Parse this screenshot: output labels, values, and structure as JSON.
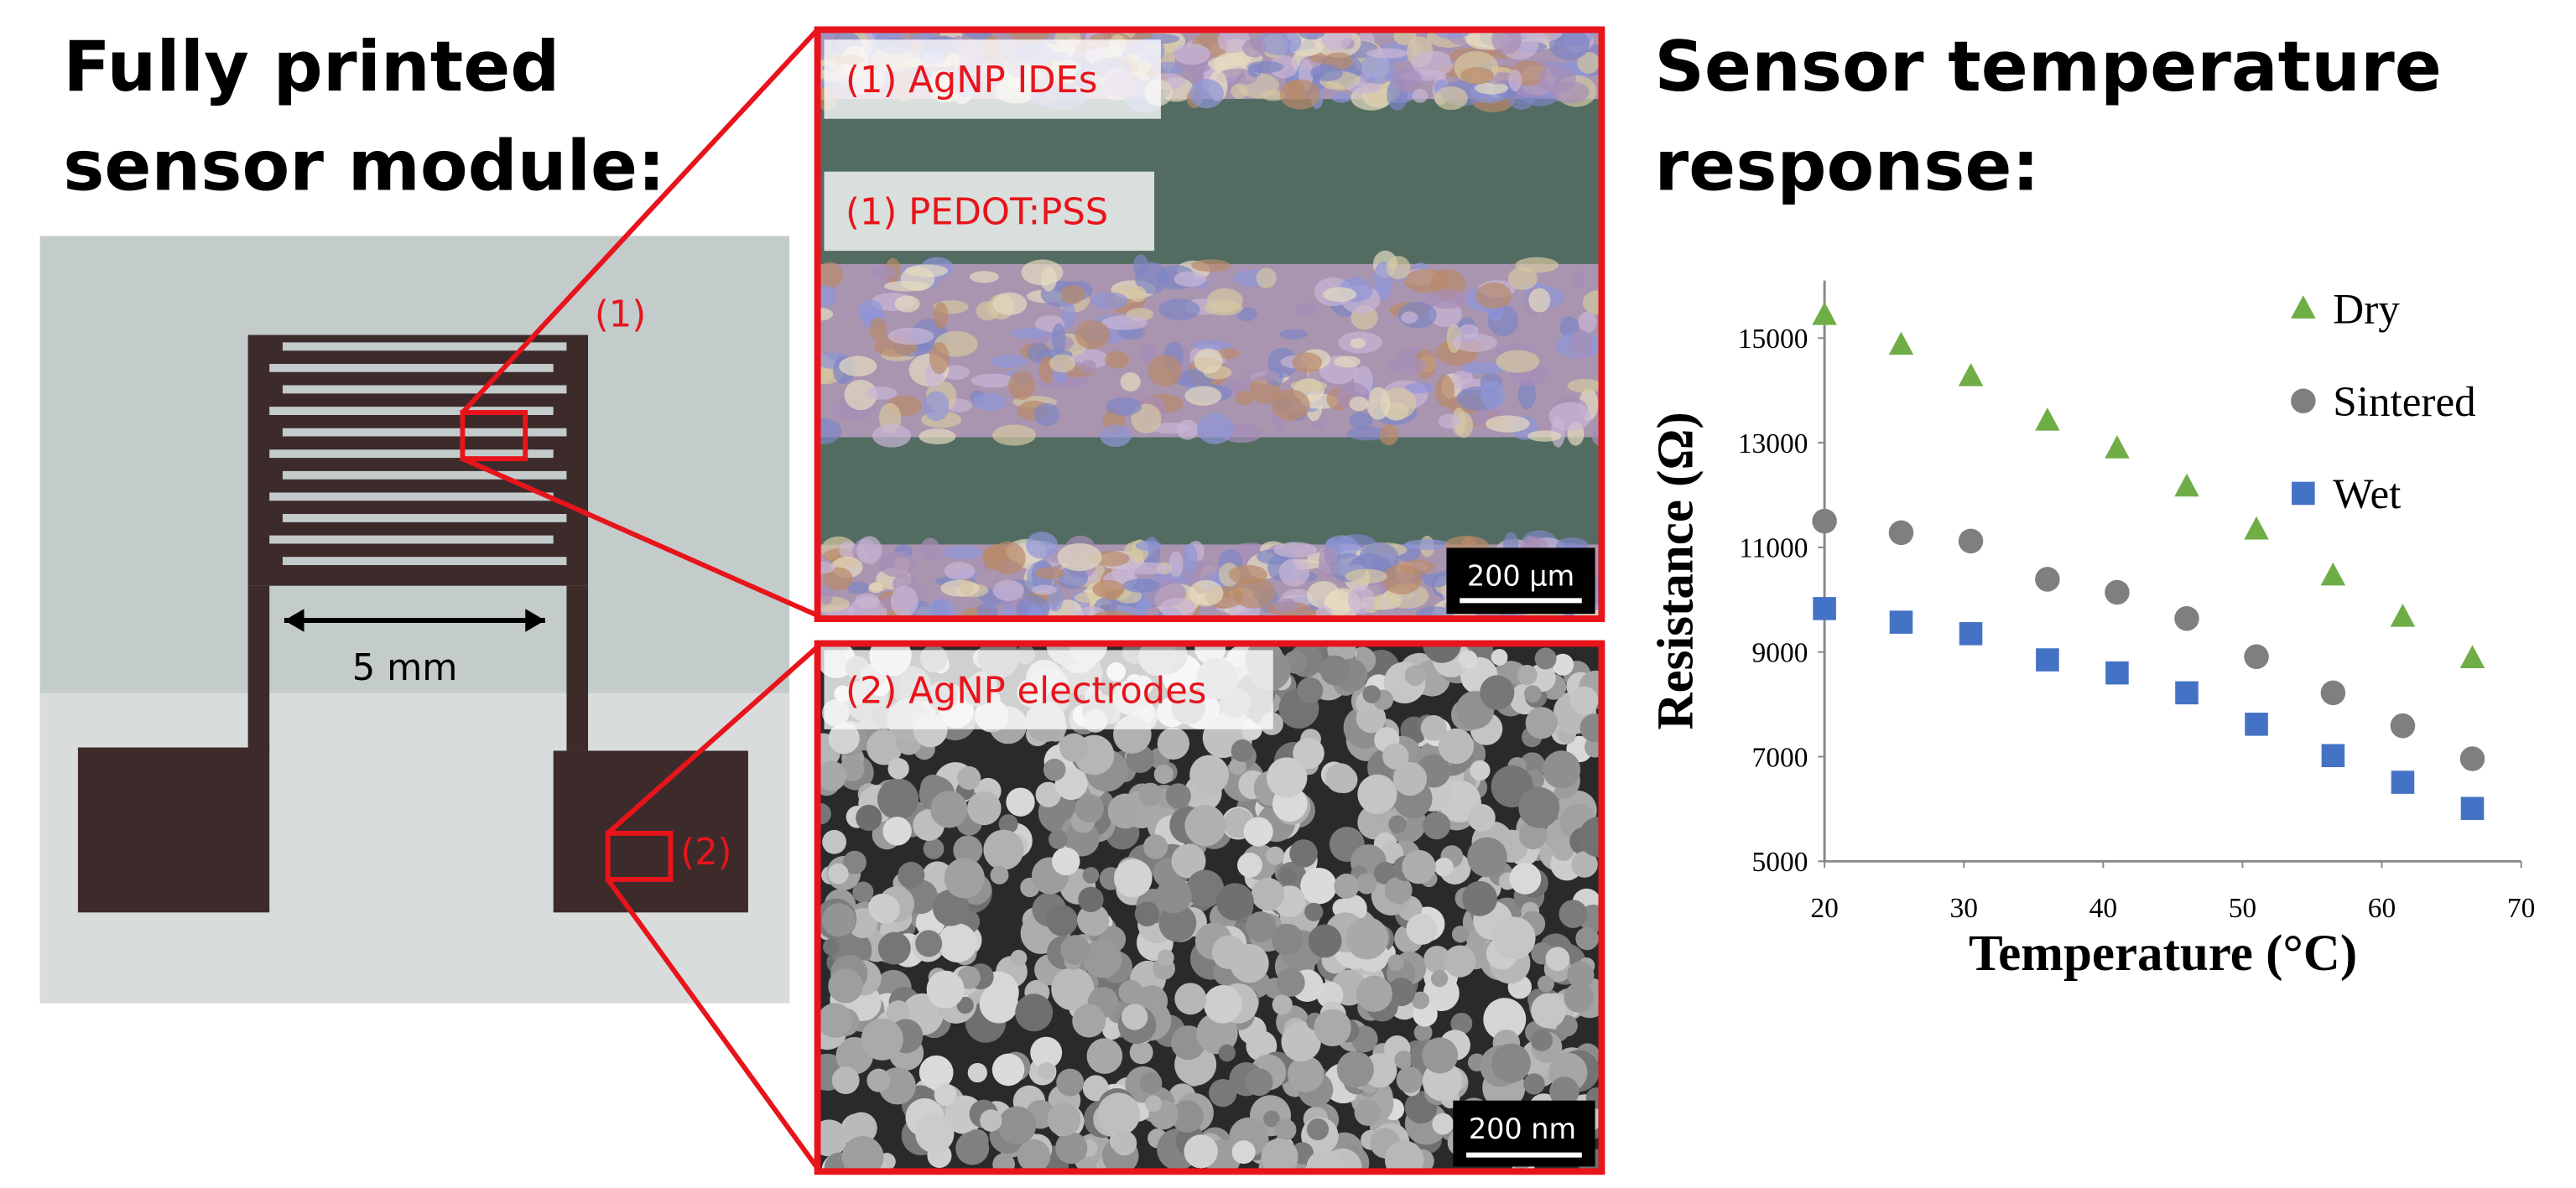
{
  "left_title": [
    "Fully printed",
    "sensor module:"
  ],
  "right_title": [
    "Sensor temperature",
    "response:"
  ],
  "photo_labels": {
    "zoom1": "(1)",
    "zoom2": "(2)",
    "scale": "5 mm"
  },
  "micrograph1": {
    "labels": [
      "(1) AgNP IDEs",
      "(1) PEDOT:PSS"
    ],
    "scale_bar": "200 µm"
  },
  "micrograph2": {
    "label": "(2) AgNP electrodes",
    "scale_bar": "200 nm"
  },
  "chart_data": {
    "type": "scatter",
    "x_label": "Temperature (°C)",
    "y_label": "Resistance (Ω)",
    "x": [
      20,
      25.5,
      30.5,
      36,
      41,
      46,
      51,
      56.5,
      61.5,
      66.5
    ],
    "series": [
      {
        "name": "Dry",
        "color": "#70ad47",
        "marker": "triangle",
        "values": [
          15440,
          14870,
          14270,
          13420,
          12890,
          12160,
          11340,
          10460,
          9670,
          8880
        ]
      },
      {
        "name": "Sintered",
        "color": "#7f7f7f",
        "marker": "circle",
        "values": [
          11500,
          11280,
          11120,
          10390,
          10140,
          9640,
          8910,
          8220,
          7590,
          6960
        ]
      },
      {
        "name": "Wet",
        "color": "#4472c4",
        "marker": "square",
        "values": [
          9830,
          9570,
          9350,
          8850,
          8600,
          8220,
          7620,
          7020,
          6510,
          6010
        ]
      }
    ],
    "xlim": [
      20,
      70
    ],
    "xticks": [
      20,
      30,
      40,
      50,
      60,
      70
    ],
    "ylim": [
      5000,
      16100
    ],
    "yticks": [
      5000,
      7000,
      9000,
      11000,
      13000,
      15000
    ],
    "grid": false,
    "legend": "upper right"
  }
}
